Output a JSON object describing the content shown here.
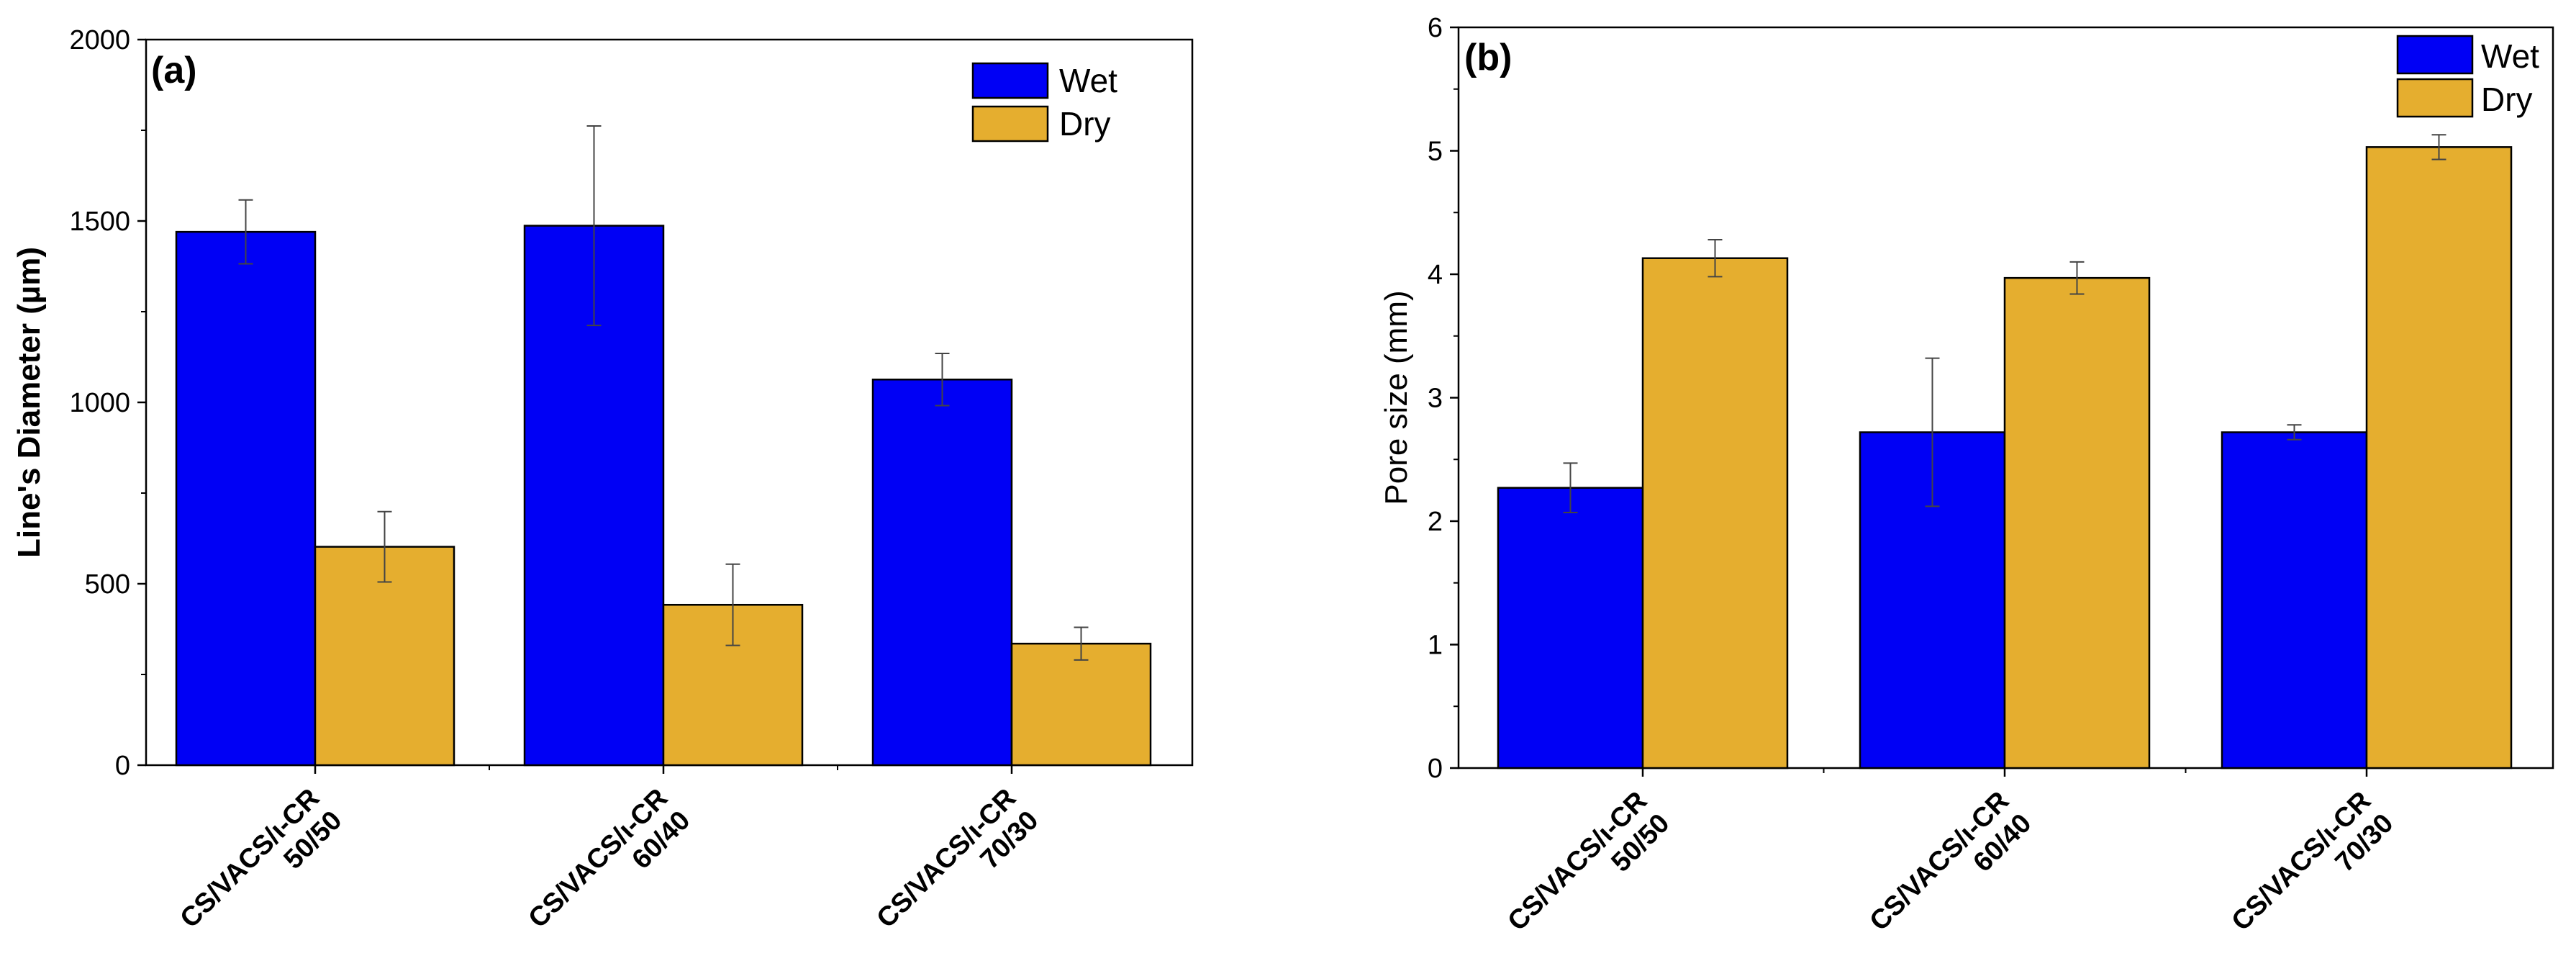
{
  "figure": {
    "panels": [
      "a",
      "b"
    ]
  },
  "chart_data": [
    {
      "type": "bar",
      "panel_label": "(a)",
      "title": "",
      "xlabel": "",
      "ylabel": "Line's Diameter (µm)",
      "ylabel_bold": true,
      "ylim": [
        0,
        2000
      ],
      "yticks": [
        "0",
        "500",
        "1000",
        "1500",
        "2000"
      ],
      "categories": [
        {
          "line1": "CS/VACS/ι-CR",
          "line2": "50/50"
        },
        {
          "line1": "CS/VACS/ι-CR",
          "line2": "60/40"
        },
        {
          "line1": "CS/VACS/ι-CR",
          "line2": "70/30"
        }
      ],
      "series": [
        {
          "name": "Wet",
          "color": "#0000F5",
          "values": [
            1470,
            1487,
            1063
          ],
          "errors": [
            88,
            275,
            72
          ]
        },
        {
          "name": "Dry",
          "color": "#E5AE2F",
          "values": [
            602,
            442,
            335
          ],
          "errors": [
            97,
            112,
            45
          ]
        }
      ],
      "legend_position": "top-right"
    },
    {
      "type": "bar",
      "panel_label": "(b)",
      "title": "",
      "xlabel": "",
      "ylabel": "Pore size (mm)",
      "ylabel_bold": false,
      "ylim": [
        0,
        6
      ],
      "yticks": [
        "0",
        "1",
        "2",
        "3",
        "4",
        "5",
        "6"
      ],
      "categories": [
        {
          "line1": "CS/VACS/ι-CR",
          "line2": "50/50"
        },
        {
          "line1": "CS/VACS/ι-CR",
          "line2": "60/40"
        },
        {
          "line1": "CS/VACS/ι-CR",
          "line2": "70/30"
        }
      ],
      "series": [
        {
          "name": "Wet",
          "color": "#0000F5",
          "values": [
            2.27,
            2.72,
            2.72
          ],
          "errors": [
            0.2,
            0.6,
            0.06
          ]
        },
        {
          "name": "Dry",
          "color": "#E5AE2F",
          "values": [
            4.13,
            3.97,
            5.03
          ],
          "errors": [
            0.15,
            0.13,
            0.1
          ]
        }
      ],
      "legend_position": "top-right"
    }
  ]
}
